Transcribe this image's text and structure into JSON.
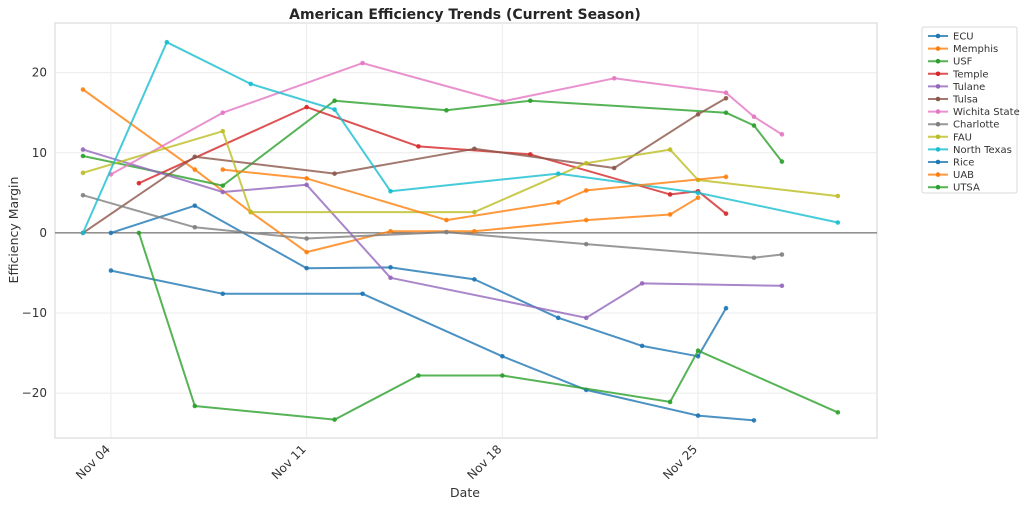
{
  "chart_data": {
    "type": "line",
    "title": "American Efficiency Trends (Current Season)",
    "xlabel": "Date",
    "ylabel": "Efficiency Margin",
    "x_tick_labels": [
      {
        "day": 4,
        "label": "Nov 04"
      },
      {
        "day": 11,
        "label": "Nov 11"
      },
      {
        "day": 18,
        "label": "Nov 18"
      },
      {
        "day": 25,
        "label": "Nov 25"
      }
    ],
    "y_ticks": [
      -20,
      -10,
      0,
      10,
      20
    ],
    "y_tick_labels": [
      "−20",
      "−10",
      "0",
      "10",
      "20"
    ],
    "xlim_day": [
      2.0,
      31.4
    ],
    "ylim": [
      -25.6,
      26.2
    ],
    "grid": true,
    "zero_line": true,
    "legend_position": "outside-right",
    "series": [
      {
        "name": "ECU",
        "color": "#1f77b4",
        "points": [
          [
            4,
            0
          ],
          [
            7,
            3.4
          ],
          [
            11,
            -4.4
          ],
          [
            14,
            -4.3
          ],
          [
            17,
            -5.8
          ],
          [
            20,
            -10.6
          ],
          [
            23,
            -14.1
          ],
          [
            25,
            -15.4
          ],
          [
            26,
            -9.4
          ]
        ]
      },
      {
        "name": "Memphis",
        "color": "#ff7f0e",
        "points": [
          [
            3,
            17.9
          ],
          [
            7,
            7.9
          ],
          [
            9,
            2.6
          ],
          [
            11,
            -2.4
          ],
          [
            14,
            0.2
          ],
          [
            17,
            0.2
          ],
          [
            21,
            1.6
          ],
          [
            24,
            2.3
          ],
          [
            25,
            4.4
          ]
        ]
      },
      {
        "name": "USF",
        "color": "#2ca02c",
        "points": [
          [
            3,
            9.6
          ],
          [
            8,
            5.9
          ],
          [
            12,
            16.5
          ],
          [
            16,
            15.3
          ],
          [
            19,
            16.5
          ],
          [
            26,
            15.0
          ],
          [
            27,
            13.4
          ],
          [
            28,
            8.9
          ]
        ]
      },
      {
        "name": "Temple",
        "color": "#d62728",
        "points": [
          [
            5,
            6.2
          ],
          [
            11,
            15.7
          ],
          [
            15,
            10.8
          ],
          [
            19,
            9.8
          ],
          [
            24,
            4.8
          ],
          [
            25,
            5.2
          ],
          [
            26,
            2.4
          ]
        ]
      },
      {
        "name": "Tulane",
        "color": "#9467bd",
        "points": [
          [
            3,
            10.4
          ],
          [
            8,
            5.1
          ],
          [
            11,
            6.0
          ],
          [
            14,
            -5.6
          ],
          [
            21,
            -10.6
          ],
          [
            23,
            -6.3
          ],
          [
            28,
            -6.6
          ]
        ]
      },
      {
        "name": "Tulsa",
        "color": "#8c564b",
        "points": [
          [
            3,
            0
          ],
          [
            7,
            9.5
          ],
          [
            12,
            7.4
          ],
          [
            17,
            10.5
          ],
          [
            22,
            8.1
          ],
          [
            25,
            14.8
          ],
          [
            26,
            16.8
          ]
        ]
      },
      {
        "name": "Wichita State",
        "color": "#e377c2",
        "points": [
          [
            4,
            7.3
          ],
          [
            8,
            15.0
          ],
          [
            13,
            21.2
          ],
          [
            18,
            16.4
          ],
          [
            22,
            19.3
          ],
          [
            26,
            17.5
          ],
          [
            27,
            14.5
          ],
          [
            28,
            12.3
          ]
        ]
      },
      {
        "name": "Charlotte",
        "color": "#7f7f7f",
        "points": [
          [
            3,
            4.7
          ],
          [
            7,
            0.7
          ],
          [
            11,
            -0.7
          ],
          [
            16,
            0.1
          ],
          [
            21,
            -1.4
          ],
          [
            27,
            -3.1
          ],
          [
            28,
            -2.7
          ]
        ]
      },
      {
        "name": "FAU",
        "color": "#bcbd22",
        "points": [
          [
            3,
            7.5
          ],
          [
            8,
            12.7
          ],
          [
            9,
            2.6
          ],
          [
            17,
            2.6
          ],
          [
            21,
            8.7
          ],
          [
            24,
            10.4
          ],
          [
            25,
            6.6
          ],
          [
            30,
            4.6
          ]
        ]
      },
      {
        "name": "North Texas",
        "color": "#17becf",
        "points": [
          [
            3,
            0
          ],
          [
            6,
            23.8
          ],
          [
            9,
            18.6
          ],
          [
            12,
            15.4
          ],
          [
            14,
            5.2
          ],
          [
            20,
            7.4
          ],
          [
            25,
            5.0
          ],
          [
            30,
            1.3
          ]
        ]
      },
      {
        "name": "Rice",
        "color": "#1f77b4",
        "points": [
          [
            4,
            -4.7
          ],
          [
            8,
            -7.6
          ],
          [
            13,
            -7.6
          ],
          [
            18,
            -15.4
          ],
          [
            21,
            -19.6
          ],
          [
            25,
            -22.8
          ],
          [
            27,
            -23.4
          ]
        ]
      },
      {
        "name": "UAB",
        "color": "#ff7f0e",
        "points": [
          [
            8,
            7.9
          ],
          [
            11,
            6.8
          ],
          [
            16,
            1.6
          ],
          [
            20,
            3.8
          ],
          [
            21,
            5.3
          ],
          [
            26,
            7.0
          ]
        ]
      },
      {
        "name": "UTSA",
        "color": "#2ca02c",
        "points": [
          [
            5,
            0
          ],
          [
            7,
            -21.6
          ],
          [
            12,
            -23.3
          ],
          [
            15,
            -17.8
          ],
          [
            18,
            -17.8
          ],
          [
            24,
            -21.1
          ],
          [
            25,
            -14.7
          ],
          [
            30,
            -22.4
          ]
        ]
      }
    ]
  }
}
